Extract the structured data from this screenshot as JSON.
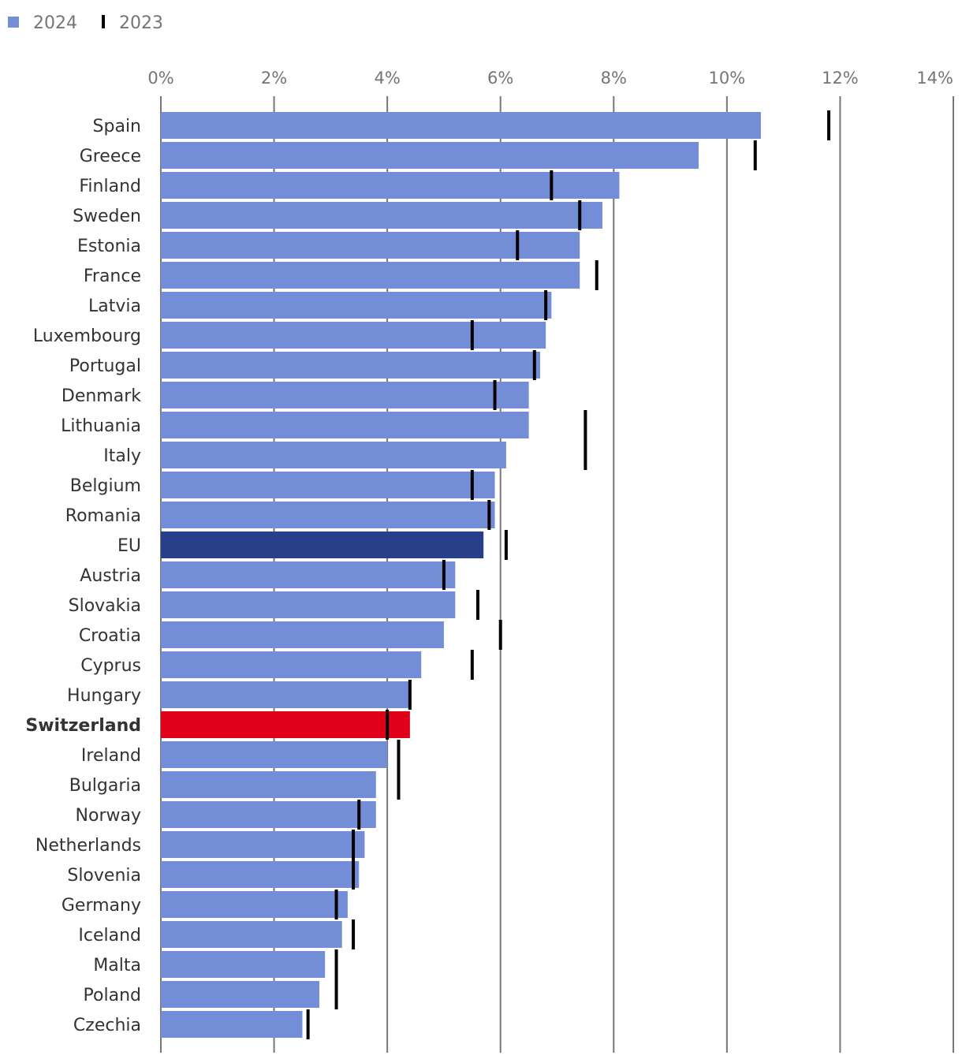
{
  "chart_data": {
    "type": "bar",
    "orientation": "horizontal",
    "legend": [
      {
        "name": "2024",
        "symbol": "bar",
        "color": "#738dd7"
      },
      {
        "name": "2023",
        "symbol": "marker",
        "color": "#000000"
      }
    ],
    "x_axis": {
      "min": 0,
      "max": 14,
      "ticks": [
        0,
        2,
        4,
        6,
        8,
        10,
        12,
        14
      ],
      "tick_labels": [
        "0%",
        "2%",
        "4%",
        "6%",
        "8%",
        "10%",
        "12%",
        "14%"
      ],
      "position": "top",
      "grid": true
    },
    "colors": {
      "default": "#738dd7",
      "eu": "#283f8a",
      "highlight": "#e0001a",
      "marker": "#000000"
    },
    "categories": [
      "Spain",
      "Greece",
      "Finland",
      "Sweden",
      "Estonia",
      "France",
      "Latvia",
      "Luxembourg",
      "Portugal",
      "Denmark",
      "Lithuania",
      "Italy",
      "Belgium",
      "Romania",
      "EU",
      "Austria",
      "Slovakia",
      "Croatia",
      "Cyprus",
      "Hungary",
      "Switzerland",
      "Ireland",
      "Bulgaria",
      "Norway",
      "Netherlands",
      "Slovenia",
      "Germany",
      "Iceland",
      "Malta",
      "Poland",
      "Czechia"
    ],
    "series": [
      {
        "name": "2024",
        "values": [
          10.6,
          9.5,
          8.1,
          7.8,
          7.4,
          7.4,
          6.9,
          6.8,
          6.7,
          6.5,
          6.5,
          6.1,
          5.9,
          5.9,
          5.7,
          5.2,
          5.2,
          5.0,
          4.6,
          4.4,
          4.4,
          4.0,
          3.8,
          3.8,
          3.6,
          3.5,
          3.3,
          3.2,
          2.9,
          2.8,
          2.5
        ]
      },
      {
        "name": "2023",
        "values": [
          11.8,
          10.5,
          6.9,
          7.4,
          6.3,
          7.7,
          6.8,
          5.5,
          6.6,
          5.9,
          7.5,
          7.5,
          5.5,
          5.8,
          6.1,
          5.0,
          5.6,
          6.0,
          5.5,
          4.4,
          4.0,
          4.2,
          4.2,
          3.5,
          3.4,
          3.4,
          3.1,
          3.4,
          3.1,
          3.1,
          2.6
        ]
      }
    ],
    "bar_style": {
      "EU": "eu",
      "Switzerland": "highlight"
    },
    "bold_labels": [
      "Switzerland"
    ]
  }
}
